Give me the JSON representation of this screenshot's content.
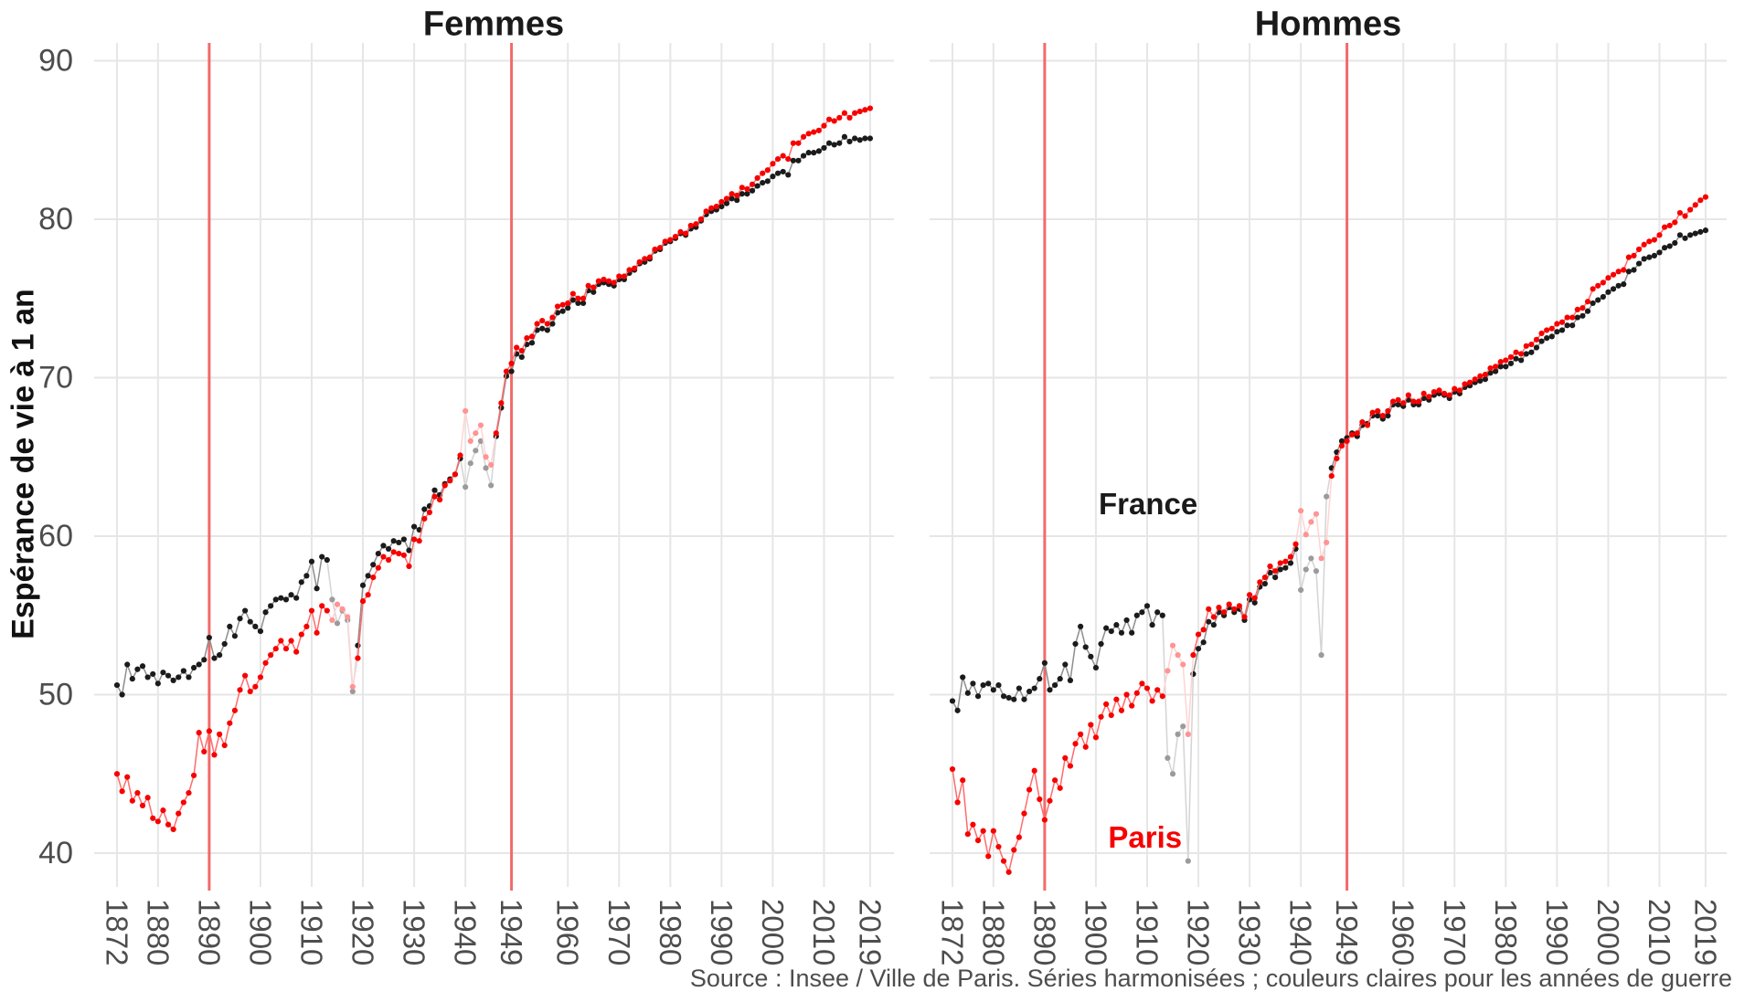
{
  "chart_data": {
    "type": "line",
    "ylabel": "Espérance de vie à 1 an",
    "caption": "Source : Insee / Ville de Paris. Séries harmonisées ; couleurs claires pour les années de guerre",
    "years": {
      "start": 1872,
      "end": 2019
    },
    "x_ticks": [
      1872,
      1880,
      1890,
      1900,
      1910,
      1920,
      1930,
      1940,
      1949,
      1960,
      1970,
      1980,
      1990,
      2000,
      2010,
      2019
    ],
    "y_ticks": [
      40,
      50,
      60,
      70,
      80,
      90
    ],
    "ylim": [
      37.5,
      91
    ],
    "vlines": [
      1890,
      1949
    ],
    "war_year_ranges": [
      [
        1914,
        1918
      ],
      [
        1940,
        1945
      ]
    ],
    "grid": "on",
    "legend_position": "none",
    "colors": {
      "france": {
        "point": "#1b1b1b",
        "line": "#8e8e8e",
        "war": "#9b9b9b",
        "war_line": "#d4d4d4"
      },
      "paris": {
        "point": "#f70000",
        "line": "#ff6b6b",
        "war": "#ff9494",
        "war_line": "#ffd4d4"
      },
      "grid": "#e6e6e6",
      "vline": "#f16a6a",
      "axis_text": "#4d4d4d",
      "title": "#1a1a1a",
      "caption": "#4d4d4d"
    },
    "panels": [
      {
        "title": "Femmes",
        "series": [
          {
            "name": "France",
            "color_key": "france",
            "values": [
              50.6,
              50.0,
              51.9,
              51.0,
              51.6,
              51.8,
              51.1,
              51.3,
              50.7,
              51.4,
              51.2,
              50.9,
              51.1,
              51.5,
              51.1,
              51.7,
              51.9,
              52.2,
              53.6,
              52.3,
              52.5,
              53.2,
              54.3,
              53.7,
              54.8,
              55.3,
              54.6,
              54.3,
              54.0,
              55.2,
              55.6,
              56.0,
              56.1,
              56.0,
              56.3,
              56.1,
              57.1,
              57.5,
              58.4,
              56.7,
              58.7,
              58.5,
              56.0,
              54.5,
              55.3,
              54.7,
              50.2,
              53.1,
              56.9,
              57.5,
              58.2,
              58.9,
              59.4,
              59.2,
              59.7,
              59.6,
              59.8,
              59.1,
              60.6,
              60.4,
              61.7,
              61.9,
              62.9,
              62.6,
              63.3,
              63.6,
              63.9,
              64.9,
              63.1,
              64.6,
              65.4,
              66.0,
              64.3,
              63.2,
              66.3,
              68.1,
              70.1,
              70.4,
              71.5,
              71.3,
              72.1,
              72.2,
              73.0,
              73.1,
              73.0,
              73.4,
              74.1,
              74.2,
              74.4,
              74.9,
              74.7,
              74.7,
              75.5,
              75.4,
              75.9,
              76.0,
              75.9,
              75.8,
              76.2,
              76.2,
              76.6,
              76.8,
              77.2,
              77.3,
              77.5,
              78.0,
              78.1,
              78.5,
              78.6,
              78.8,
              79.1,
              79.0,
              79.4,
              79.5,
              79.9,
              80.3,
              80.5,
              80.6,
              80.8,
              81.0,
              81.3,
              81.2,
              81.6,
              81.6,
              81.8,
              82.1,
              82.3,
              82.4,
              82.7,
              82.9,
              83.0,
              82.8,
              83.7,
              83.7,
              84.0,
              84.2,
              84.2,
              84.3,
              84.5,
              84.8,
              84.7,
              84.8,
              85.2,
              84.9,
              85.1,
              85.0,
              85.1,
              85.1
            ]
          },
          {
            "name": "Paris",
            "color_key": "paris",
            "values": [
              45.0,
              43.9,
              44.8,
              43.3,
              43.8,
              43.0,
              43.5,
              42.2,
              42.0,
              42.7,
              41.8,
              41.5,
              42.5,
              43.2,
              43.8,
              44.9,
              47.6,
              46.4,
              47.7,
              46.2,
              47.5,
              46.8,
              48.2,
              49.0,
              50.3,
              51.2,
              50.2,
              50.5,
              51.1,
              52.0,
              52.5,
              52.9,
              53.4,
              52.9,
              53.4,
              52.7,
              53.8,
              54.3,
              55.3,
              53.9,
              55.6,
              55.3,
              54.7,
              55.7,
              55.4,
              54.9,
              50.5,
              52.3,
              55.9,
              56.3,
              57.4,
              58.0,
              58.7,
              58.5,
              59.0,
              58.9,
              58.8,
              58.1,
              59.8,
              59.7,
              61.1,
              61.5,
              62.5,
              62.3,
              63.2,
              63.5,
              63.9,
              65.1,
              67.9,
              66.0,
              66.5,
              67.0,
              65.0,
              64.5,
              66.5,
              68.4,
              70.4,
              70.9,
              71.9,
              71.7,
              72.5,
              72.6,
              73.4,
              73.6,
              73.4,
              73.8,
              74.5,
              74.6,
              74.7,
              75.3,
              75.0,
              75.0,
              75.8,
              75.7,
              76.1,
              76.2,
              76.1,
              76.0,
              76.4,
              76.4,
              76.8,
              76.9,
              77.3,
              77.5,
              77.6,
              78.1,
              78.2,
              78.6,
              78.7,
              78.9,
              79.2,
              79.1,
              79.6,
              79.7,
              80.0,
              80.5,
              80.7,
              80.8,
              81.1,
              81.3,
              81.6,
              81.5,
              82.0,
              81.9,
              82.2,
              82.6,
              82.9,
              83.1,
              83.5,
              83.8,
              84.0,
              83.8,
              84.8,
              84.8,
              85.2,
              85.4,
              85.5,
              85.6,
              85.9,
              86.3,
              86.2,
              86.4,
              86.7,
              86.4,
              86.7,
              86.8,
              86.9,
              87.0
            ]
          }
        ]
      },
      {
        "title": "Hommes",
        "annotations": [
          {
            "text": "France",
            "year": 1910.2,
            "value": 62.0,
            "color_key": "france"
          },
          {
            "text": "Paris",
            "year": 1909.6,
            "value": 41.0,
            "color_key": "paris"
          }
        ],
        "series": [
          {
            "name": "France",
            "color_key": "france",
            "values": [
              49.6,
              49.0,
              51.1,
              50.1,
              50.7,
              49.9,
              50.6,
              50.7,
              50.3,
              50.6,
              49.9,
              49.8,
              49.7,
              50.4,
              49.7,
              50.2,
              50.4,
              51.0,
              52.0,
              50.3,
              50.6,
              51.0,
              51.9,
              50.9,
              53.2,
              54.3,
              53.0,
              52.4,
              51.7,
              53.2,
              54.2,
              54.0,
              54.4,
              53.9,
              54.7,
              53.9,
              55.0,
              55.2,
              55.6,
              54.4,
              55.2,
              55.0,
              46.0,
              45.0,
              47.5,
              48.0,
              39.5,
              51.3,
              52.9,
              53.3,
              54.6,
              54.4,
              55.2,
              55.0,
              55.5,
              55.2,
              55.4,
              54.7,
              56.0,
              55.8,
              56.8,
              57.0,
              57.7,
              57.4,
              57.9,
              58.0,
              58.3,
              59.2,
              56.6,
              57.9,
              58.6,
              57.8,
              52.5,
              62.5,
              64.3,
              65.3,
              66.0,
              66.2,
              66.5,
              66.3,
              67.0,
              67.1,
              67.6,
              67.6,
              67.4,
              67.6,
              68.3,
              68.3,
              68.2,
              68.6,
              68.3,
              68.3,
              68.7,
              68.6,
              68.9,
              69.0,
              68.9,
              68.7,
              69.1,
              69.0,
              69.4,
              69.5,
              69.7,
              69.8,
              69.9,
              70.3,
              70.4,
              70.7,
              70.7,
              70.9,
              71.2,
              71.1,
              71.5,
              71.6,
              71.9,
              72.3,
              72.5,
              72.6,
              72.9,
              73.0,
              73.3,
              73.3,
              73.8,
              73.9,
              74.2,
              74.7,
              74.9,
              75.1,
              75.4,
              75.6,
              75.8,
              75.9,
              76.7,
              76.8,
              77.2,
              77.5,
              77.6,
              77.7,
              77.9,
              78.2,
              78.3,
              78.5,
              79.0,
              78.8,
              79.0,
              79.1,
              79.2,
              79.3
            ]
          },
          {
            "name": "Paris",
            "color_key": "paris",
            "values": [
              45.3,
              43.2,
              44.6,
              41.2,
              41.8,
              40.8,
              41.4,
              39.8,
              41.4,
              40.4,
              39.5,
              38.8,
              40.2,
              41.0,
              42.5,
              44.0,
              45.2,
              43.4,
              42.1,
              43.3,
              44.6,
              44.1,
              46.0,
              45.5,
              46.9,
              47.5,
              46.7,
              48.1,
              47.3,
              48.6,
              49.4,
              48.7,
              49.7,
              49.0,
              50.0,
              49.3,
              50.1,
              50.7,
              50.4,
              49.6,
              50.3,
              49.9,
              51.5,
              53.1,
              52.5,
              51.9,
              47.5,
              52.5,
              53.8,
              54.1,
              55.4,
              54.9,
              55.5,
              55.2,
              55.7,
              55.4,
              55.6,
              54.9,
              56.3,
              56.1,
              57.1,
              57.4,
              58.1,
              57.8,
              58.3,
              58.4,
              58.7,
              59.5,
              61.6,
              60.1,
              60.9,
              61.4,
              58.6,
              59.6,
              63.8,
              64.9,
              65.7,
              66.0,
              66.4,
              66.5,
              67.2,
              67.0,
              67.8,
              67.9,
              67.6,
              67.9,
              68.5,
              68.6,
              68.4,
              68.9,
              68.5,
              68.5,
              69.0,
              68.8,
              69.1,
              69.2,
              69.0,
              68.9,
              69.3,
              69.2,
              69.6,
              69.7,
              69.9,
              70.1,
              70.2,
              70.6,
              70.7,
              71.0,
              71.1,
              71.3,
              71.6,
              71.5,
              72.0,
              72.1,
              72.4,
              72.8,
              73.0,
              73.1,
              73.4,
              73.5,
              73.8,
              73.8,
              74.3,
              74.4,
              74.8,
              75.6,
              75.8,
              76.0,
              76.3,
              76.5,
              76.7,
              76.8,
              77.6,
              77.7,
              78.1,
              78.4,
              78.6,
              78.7,
              79.0,
              79.5,
              79.6,
              79.8,
              80.4,
              80.2,
              80.6,
              80.9,
              81.2,
              81.4
            ]
          }
        ]
      }
    ]
  }
}
